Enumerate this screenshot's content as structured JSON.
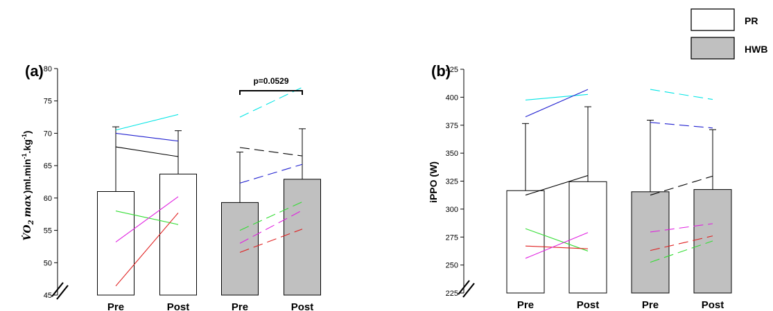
{
  "legend": {
    "items": [
      {
        "label": "PR",
        "color": "#ffffff"
      },
      {
        "label": "HWB",
        "color": "#c0c0c0"
      }
    ]
  },
  "chart_data": [
    {
      "type": "bar",
      "panel_label": "(a)",
      "ylabel": "V̇O₂ max ) ml.min⁻¹.kg⁻¹)",
      "ylabel_main": "V̇O",
      "ylabel_sub": "2",
      "ylabel_max": "max",
      "ylabel_units": ")ml.min",
      "ylabel_sup1": "-1",
      "ylabel_mid": ".kg",
      "ylabel_sup2": "-1",
      "ylabel_close": ")",
      "ylim": [
        45,
        80
      ],
      "yticks": [
        45,
        50,
        55,
        60,
        65,
        70,
        75,
        80
      ],
      "axis_break": true,
      "categories": [
        "Pre",
        "Post",
        "Pre",
        "Post"
      ],
      "bar_groups": [
        "PR",
        "PR",
        "HWB",
        "HWB"
      ],
      "bars": [
        {
          "mean": 61.0,
          "sd_top": 71.0
        },
        {
          "mean": 63.7,
          "sd_top": 70.4
        },
        {
          "mean": 59.3,
          "sd_top": 67.1
        },
        {
          "mean": 62.9,
          "sd_top": 70.7
        }
      ],
      "annotation": {
        "text": "p=0.0529",
        "from": 2,
        "to": 3
      },
      "individuals": [
        {
          "group": "PR",
          "color": "#00e5e5",
          "pre": 70.5,
          "post": 72.9,
          "dashed": false
        },
        {
          "group": "PR",
          "color": "#2020d0",
          "pre": 70.0,
          "post": 68.8,
          "dashed": false
        },
        {
          "group": "PR",
          "color": "#000000",
          "pre": 67.9,
          "post": 66.4,
          "dashed": false
        },
        {
          "group": "PR",
          "color": "#33dd33",
          "pre": 58.0,
          "post": 55.9,
          "dashed": false
        },
        {
          "group": "PR",
          "color": "#e020e0",
          "pre": 53.2,
          "post": 60.2,
          "dashed": false
        },
        {
          "group": "PR",
          "color": "#e02020",
          "pre": 46.4,
          "post": 57.7,
          "dashed": false
        },
        {
          "group": "HWB",
          "color": "#00e5e5",
          "pre": 72.5,
          "post": 77.1,
          "dashed": true
        },
        {
          "group": "HWB",
          "color": "#000000",
          "pre": 67.8,
          "post": 66.5,
          "dashed": true
        },
        {
          "group": "HWB",
          "color": "#2020d0",
          "pre": 62.3,
          "post": 65.2,
          "dashed": true
        },
        {
          "group": "HWB",
          "color": "#33dd33",
          "pre": 55.0,
          "post": 59.4,
          "dashed": true
        },
        {
          "group": "HWB",
          "color": "#e020e0",
          "pre": 53.0,
          "post": 58.1,
          "dashed": true
        },
        {
          "group": "HWB",
          "color": "#e02020",
          "pre": 51.6,
          "post": 55.2,
          "dashed": true
        }
      ]
    },
    {
      "type": "bar",
      "panel_label": "(b)",
      "ylabel": "iPPO (W)",
      "ylim": [
        225,
        425
      ],
      "yticks": [
        225,
        250,
        275,
        300,
        325,
        350,
        375,
        400,
        425
      ],
      "axis_break": true,
      "categories": [
        "Pre",
        "Post",
        "Pre",
        "Post"
      ],
      "bar_groups": [
        "PR",
        "PR",
        "HWB",
        "HWB"
      ],
      "bars": [
        {
          "mean": 316.5,
          "sd_top": 376.5
        },
        {
          "mean": 324.5,
          "sd_top": 391.5
        },
        {
          "mean": 315.5,
          "sd_top": 379.5
        },
        {
          "mean": 317.5,
          "sd_top": 371.0
        }
      ],
      "individuals": [
        {
          "group": "PR",
          "color": "#00e5e5",
          "pre": 397.5,
          "post": 402.5,
          "dashed": false
        },
        {
          "group": "PR",
          "color": "#2020d0",
          "pre": 382.5,
          "post": 407.0,
          "dashed": false
        },
        {
          "group": "PR",
          "color": "#000000",
          "pre": 312.5,
          "post": 330.0,
          "dashed": false
        },
        {
          "group": "PR",
          "color": "#33dd33",
          "pre": 282.5,
          "post": 262.5,
          "dashed": false
        },
        {
          "group": "PR",
          "color": "#e02020",
          "pre": 267.0,
          "post": 264.5,
          "dashed": false
        },
        {
          "group": "PR",
          "color": "#e020e0",
          "pre": 256.0,
          "post": 279.0,
          "dashed": false
        },
        {
          "group": "HWB",
          "color": "#00e5e5",
          "pre": 407.0,
          "post": 398.0,
          "dashed": true
        },
        {
          "group": "HWB",
          "color": "#2020d0",
          "pre": 377.5,
          "post": 372.5,
          "dashed": true
        },
        {
          "group": "HWB",
          "color": "#000000",
          "pre": 312.5,
          "post": 329.5,
          "dashed": true
        },
        {
          "group": "HWB",
          "color": "#e020e0",
          "pre": 279.5,
          "post": 287.0,
          "dashed": true
        },
        {
          "group": "HWB",
          "color": "#e02020",
          "pre": 263.0,
          "post": 276.0,
          "dashed": true
        },
        {
          "group": "HWB",
          "color": "#33dd33",
          "pre": 252.5,
          "post": 271.5,
          "dashed": true
        }
      ]
    }
  ]
}
